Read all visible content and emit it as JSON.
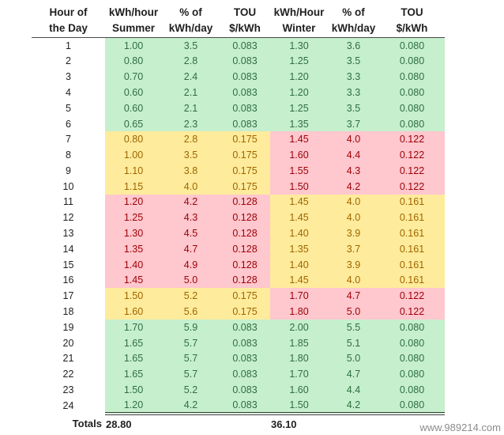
{
  "chart_data": {
    "type": "table",
    "columns": [
      {
        "id": "hour",
        "line1": "Hour of",
        "line2": "the Day"
      },
      {
        "id": "summer-kwh",
        "line1": "kWh/hour",
        "line2": "Summer"
      },
      {
        "id": "summer-pct",
        "line1": "% of",
        "line2": "kWh/day"
      },
      {
        "id": "summer-tou",
        "line1": "TOU",
        "line2": "$/kWh"
      },
      {
        "id": "winter-kwh",
        "line1": "kWh/Hour",
        "line2": "Winter"
      },
      {
        "id": "winter-pct",
        "line1": "% of",
        "line2": "kWh/day"
      },
      {
        "id": "winter-tou",
        "line1": "TOU",
        "line2": "$/kWh"
      }
    ],
    "rows": [
      {
        "hour": "1",
        "summer": [
          "1.00",
          "3.5",
          "0.083"
        ],
        "winter": [
          "1.30",
          "3.6",
          "0.080"
        ],
        "summer_band": "green",
        "winter_band": "green"
      },
      {
        "hour": "2",
        "summer": [
          "0.80",
          "2.8",
          "0.083"
        ],
        "winter": [
          "1.25",
          "3.5",
          "0.080"
        ],
        "summer_band": "green",
        "winter_band": "green"
      },
      {
        "hour": "3",
        "summer": [
          "0.70",
          "2.4",
          "0.083"
        ],
        "winter": [
          "1.20",
          "3.3",
          "0.080"
        ],
        "summer_band": "green",
        "winter_band": "green"
      },
      {
        "hour": "4",
        "summer": [
          "0.60",
          "2.1",
          "0.083"
        ],
        "winter": [
          "1.20",
          "3.3",
          "0.080"
        ],
        "summer_band": "green",
        "winter_band": "green"
      },
      {
        "hour": "5",
        "summer": [
          "0.60",
          "2.1",
          "0.083"
        ],
        "winter": [
          "1.25",
          "3.5",
          "0.080"
        ],
        "summer_band": "green",
        "winter_band": "green"
      },
      {
        "hour": "6",
        "summer": [
          "0.65",
          "2.3",
          "0.083"
        ],
        "winter": [
          "1.35",
          "3.7",
          "0.080"
        ],
        "summer_band": "green",
        "winter_band": "green"
      },
      {
        "hour": "7",
        "summer": [
          "0.80",
          "2.8",
          "0.175"
        ],
        "winter": [
          "1.45",
          "4.0",
          "0.122"
        ],
        "summer_band": "yellow",
        "winter_band": "pink"
      },
      {
        "hour": "8",
        "summer": [
          "1.00",
          "3.5",
          "0.175"
        ],
        "winter": [
          "1.60",
          "4.4",
          "0.122"
        ],
        "summer_band": "yellow",
        "winter_band": "pink"
      },
      {
        "hour": "9",
        "summer": [
          "1.10",
          "3.8",
          "0.175"
        ],
        "winter": [
          "1.55",
          "4.3",
          "0.122"
        ],
        "summer_band": "yellow",
        "winter_band": "pink"
      },
      {
        "hour": "10",
        "summer": [
          "1.15",
          "4.0",
          "0.175"
        ],
        "winter": [
          "1.50",
          "4.2",
          "0.122"
        ],
        "summer_band": "yellow",
        "winter_band": "pink"
      },
      {
        "hour": "11",
        "summer": [
          "1.20",
          "4.2",
          "0.128"
        ],
        "winter": [
          "1.45",
          "4.0",
          "0.161"
        ],
        "summer_band": "pink",
        "winter_band": "yellow"
      },
      {
        "hour": "12",
        "summer": [
          "1.25",
          "4.3",
          "0.128"
        ],
        "winter": [
          "1.45",
          "4.0",
          "0.161"
        ],
        "summer_band": "pink",
        "winter_band": "yellow"
      },
      {
        "hour": "13",
        "summer": [
          "1.30",
          "4.5",
          "0.128"
        ],
        "winter": [
          "1.40",
          "3.9",
          "0.161"
        ],
        "summer_band": "pink",
        "winter_band": "yellow"
      },
      {
        "hour": "14",
        "summer": [
          "1.35",
          "4.7",
          "0.128"
        ],
        "winter": [
          "1.35",
          "3.7",
          "0.161"
        ],
        "summer_band": "pink",
        "winter_band": "yellow"
      },
      {
        "hour": "15",
        "summer": [
          "1.40",
          "4.9",
          "0.128"
        ],
        "winter": [
          "1.40",
          "3.9",
          "0.161"
        ],
        "summer_band": "pink",
        "winter_band": "yellow"
      },
      {
        "hour": "16",
        "summer": [
          "1.45",
          "5.0",
          "0.128"
        ],
        "winter": [
          "1.45",
          "4.0",
          "0.161"
        ],
        "summer_band": "pink",
        "winter_band": "yellow"
      },
      {
        "hour": "17",
        "summer": [
          "1.50",
          "5.2",
          "0.175"
        ],
        "winter": [
          "1.70",
          "4.7",
          "0.122"
        ],
        "summer_band": "yellow",
        "winter_band": "pink"
      },
      {
        "hour": "18",
        "summer": [
          "1.60",
          "5.6",
          "0.175"
        ],
        "winter": [
          "1.80",
          "5.0",
          "0.122"
        ],
        "summer_band": "yellow",
        "winter_band": "pink"
      },
      {
        "hour": "19",
        "summer": [
          "1.70",
          "5.9",
          "0.083"
        ],
        "winter": [
          "2.00",
          "5.5",
          "0.080"
        ],
        "summer_band": "green",
        "winter_band": "green"
      },
      {
        "hour": "20",
        "summer": [
          "1.65",
          "5.7",
          "0.083"
        ],
        "winter": [
          "1.85",
          "5.1",
          "0.080"
        ],
        "summer_band": "green",
        "winter_band": "green"
      },
      {
        "hour": "21",
        "summer": [
          "1.65",
          "5.7",
          "0.083"
        ],
        "winter": [
          "1.80",
          "5.0",
          "0.080"
        ],
        "summer_band": "green",
        "winter_band": "green"
      },
      {
        "hour": "22",
        "summer": [
          "1.65",
          "5.7",
          "0.083"
        ],
        "winter": [
          "1.70",
          "4.7",
          "0.080"
        ],
        "summer_band": "green",
        "winter_band": "green"
      },
      {
        "hour": "23",
        "summer": [
          "1.50",
          "5.2",
          "0.083"
        ],
        "winter": [
          "1.60",
          "4.4",
          "0.080"
        ],
        "summer_band": "green",
        "winter_band": "green"
      },
      {
        "hour": "24",
        "summer": [
          "1.20",
          "4.2",
          "0.083"
        ],
        "winter": [
          "1.50",
          "4.2",
          "0.080"
        ],
        "summer_band": "green",
        "winter_band": "green"
      }
    ],
    "totals": {
      "label": "Totals",
      "summer_total": "28.80",
      "winter_total": "36.10"
    },
    "legend_bands": {
      "green_tou_summer": "0.083",
      "green_tou_winter": "0.080",
      "yellow_tou_summer": "0.175",
      "yellow_tou_winter": "0.161",
      "pink_tou_summer": "0.128",
      "pink_tou_winter": "0.122"
    }
  },
  "colors": {
    "green_bg": "#c6efce",
    "green_text": "#2f6f3f",
    "yellow_bg": "#ffeb9c",
    "yellow_text": "#9c6500",
    "pink_bg": "#ffc7ce",
    "pink_text": "#9c0006"
  },
  "watermark": "www.989214.com"
}
